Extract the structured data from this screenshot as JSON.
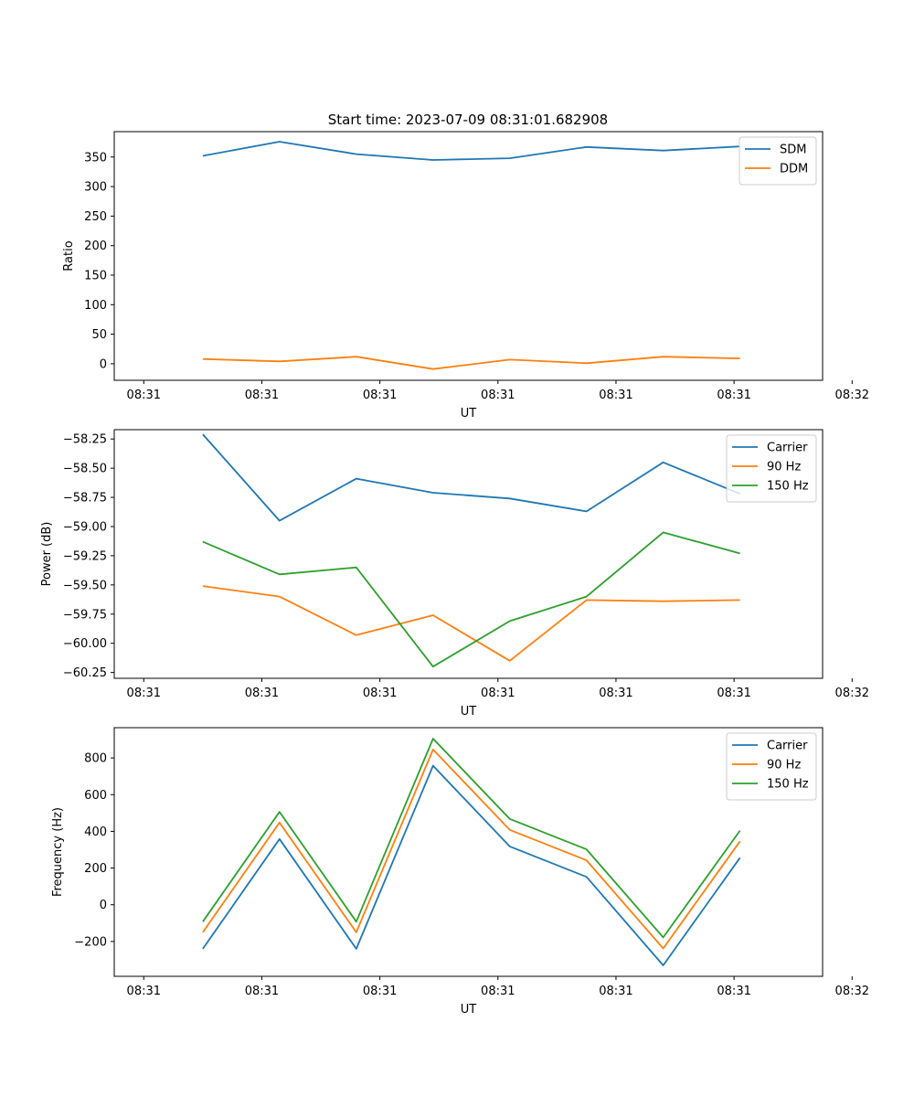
{
  "figure_title": "Start time: 2023-07-09 08:31:01.682908",
  "colors": {
    "blue": "#1f77b4",
    "orange": "#ff7f0e",
    "green": "#2ca02c"
  },
  "chart_data": [
    {
      "type": "line",
      "title": "Start time: 2023-07-09 08:31:01.682908",
      "xlabel": "UT",
      "ylabel": "Ratio",
      "legend_position": "top-right",
      "grid": false,
      "xlim": [
        -0.15,
        1.05
      ],
      "ylim": [
        -28,
        393
      ],
      "x_ticks": [
        {
          "value": -0.1,
          "label": "08:31"
        },
        {
          "value": 0.1,
          "label": "08:31"
        },
        {
          "value": 0.3,
          "label": "08:31"
        },
        {
          "value": 0.5,
          "label": "08:31"
        },
        {
          "value": 0.7,
          "label": "08:31"
        },
        {
          "value": 0.9,
          "label": "08:31"
        },
        {
          "value": 1.1,
          "label": "08:32"
        }
      ],
      "y_ticks": [
        {
          "value": 0,
          "label": "0"
        },
        {
          "value": 50,
          "label": "50"
        },
        {
          "value": 100,
          "label": "100"
        },
        {
          "value": 150,
          "label": "150"
        },
        {
          "value": 200,
          "label": "200"
        },
        {
          "value": 250,
          "label": "250"
        },
        {
          "value": 300,
          "label": "300"
        },
        {
          "value": 350,
          "label": "350"
        }
      ],
      "x": [
        0,
        0.13,
        0.26,
        0.39,
        0.52,
        0.65,
        0.78,
        0.91
      ],
      "series": [
        {
          "name": "SDM",
          "color": "#1f77b4",
          "values": [
            352,
            376,
            355,
            345,
            348,
            367,
            361,
            368
          ]
        },
        {
          "name": "DDM",
          "color": "#ff7f0e",
          "values": [
            8,
            4,
            12,
            -9,
            7,
            1,
            12,
            9
          ]
        }
      ]
    },
    {
      "type": "line",
      "xlabel": "UT",
      "ylabel": "Power (dB)",
      "legend_position": "top-right",
      "grid": false,
      "xlim": [
        -0.15,
        1.05
      ],
      "ylim": [
        -60.3,
        -58.17
      ],
      "x_ticks": [
        {
          "value": -0.1,
          "label": "08:31"
        },
        {
          "value": 0.1,
          "label": "08:31"
        },
        {
          "value": 0.3,
          "label": "08:31"
        },
        {
          "value": 0.5,
          "label": "08:31"
        },
        {
          "value": 0.7,
          "label": "08:31"
        },
        {
          "value": 0.9,
          "label": "08:31"
        },
        {
          "value": 1.1,
          "label": "08:32"
        }
      ],
      "y_ticks": [
        {
          "value": -60.25,
          "label": "−60.25"
        },
        {
          "value": -60.0,
          "label": "−60.00"
        },
        {
          "value": -59.75,
          "label": "−59.75"
        },
        {
          "value": -59.5,
          "label": "−59.50"
        },
        {
          "value": -59.25,
          "label": "−59.25"
        },
        {
          "value": -59.0,
          "label": "−59.00"
        },
        {
          "value": -58.75,
          "label": "−58.75"
        },
        {
          "value": -58.5,
          "label": "−58.50"
        },
        {
          "value": -58.25,
          "label": "−58.25"
        }
      ],
      "x": [
        0,
        0.13,
        0.26,
        0.39,
        0.52,
        0.65,
        0.78,
        0.91
      ],
      "series": [
        {
          "name": "Carrier",
          "color": "#1f77b4",
          "values": [
            -58.21,
            -58.95,
            -58.59,
            -58.71,
            -58.76,
            -58.87,
            -58.45,
            -58.72
          ]
        },
        {
          "name": "90 Hz",
          "color": "#ff7f0e",
          "values": [
            -59.51,
            -59.6,
            -59.93,
            -59.76,
            -60.15,
            -59.63,
            -59.64,
            -59.63
          ]
        },
        {
          "name": "150 Hz",
          "color": "#2ca02c",
          "values": [
            -59.13,
            -59.41,
            -59.35,
            -60.2,
            -59.81,
            -59.6,
            -59.05,
            -59.23
          ]
        }
      ]
    },
    {
      "type": "line",
      "xlabel": "UT",
      "ylabel": "Frequency (Hz)",
      "legend_position": "top-right",
      "grid": false,
      "xlim": [
        -0.15,
        1.05
      ],
      "ylim": [
        -390,
        965
      ],
      "x_ticks": [
        {
          "value": -0.1,
          "label": "08:31"
        },
        {
          "value": 0.1,
          "label": "08:31"
        },
        {
          "value": 0.3,
          "label": "08:31"
        },
        {
          "value": 0.5,
          "label": "08:31"
        },
        {
          "value": 0.7,
          "label": "08:31"
        },
        {
          "value": 0.9,
          "label": "08:31"
        },
        {
          "value": 1.1,
          "label": "08:32"
        }
      ],
      "y_ticks": [
        {
          "value": -200,
          "label": "−200"
        },
        {
          "value": 0,
          "label": "0"
        },
        {
          "value": 200,
          "label": "200"
        },
        {
          "value": 400,
          "label": "400"
        },
        {
          "value": 600,
          "label": "600"
        },
        {
          "value": 800,
          "label": "800"
        }
      ],
      "x": [
        0,
        0.13,
        0.26,
        0.39,
        0.52,
        0.65,
        0.78,
        0.91
      ],
      "series": [
        {
          "name": "Carrier",
          "color": "#1f77b4",
          "values": [
            -240,
            358,
            -240,
            758,
            318,
            152,
            -330,
            256
          ]
        },
        {
          "name": "90 Hz",
          "color": "#ff7f0e",
          "values": [
            -150,
            448,
            -150,
            846,
            408,
            242,
            -238,
            346
          ]
        },
        {
          "name": "150 Hz",
          "color": "#2ca02c",
          "values": [
            -92,
            506,
            -92,
            905,
            468,
            302,
            -178,
            404
          ]
        }
      ]
    }
  ]
}
